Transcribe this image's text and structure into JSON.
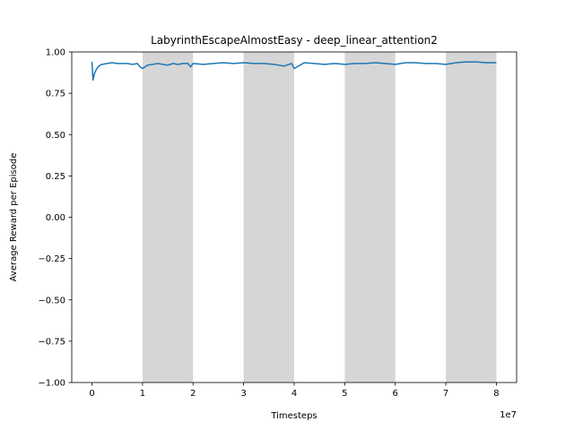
{
  "chart_data": {
    "type": "line",
    "title": "LabyrinthEscapeAlmostEasy - deep_linear_attention2",
    "xlabel": "Timesteps",
    "ylabel": "Average Reward per Episode",
    "x_offset_text": "1e7",
    "xlim": [
      -4000000,
      84000000
    ],
    "ylim": [
      -1.0,
      1.0
    ],
    "x_ticks": [
      0,
      10000000,
      20000000,
      30000000,
      40000000,
      50000000,
      60000000,
      70000000,
      80000000
    ],
    "x_tick_labels": [
      "0",
      "1",
      "2",
      "3",
      "4",
      "5",
      "6",
      "7",
      "8"
    ],
    "y_ticks": [
      1.0,
      0.75,
      0.5,
      0.25,
      0.0,
      -0.25,
      -0.5,
      -0.75,
      -1.0
    ],
    "y_tick_labels": [
      "1.00",
      "0.75",
      "0.50",
      "0.25",
      "0.00",
      "−0.25",
      "−0.50",
      "−0.75",
      "−1.00"
    ],
    "grid": false,
    "shaded_regions": [
      [
        10000000,
        20000000
      ],
      [
        30000000,
        40000000
      ],
      [
        50000000,
        60000000
      ],
      [
        70000000,
        80000000
      ]
    ],
    "shade_color": "#d6d6d6",
    "series": [
      {
        "color": "#1f77b4",
        "x": [
          0,
          200000,
          500000,
          800000,
          1200000,
          1600000,
          2000000,
          3000000,
          4000000,
          5000000,
          6000000,
          7000000,
          8000000,
          9000000,
          9500000,
          10000000,
          11000000,
          12000000,
          13000000,
          14000000,
          15000000,
          16000000,
          17000000,
          18000000,
          19000000,
          19500000,
          20000000,
          22000000,
          24000000,
          26000000,
          28000000,
          30000000,
          32000000,
          34000000,
          36000000,
          38000000,
          39500000,
          40000000,
          42000000,
          44000000,
          46000000,
          48000000,
          50000000,
          52000000,
          54000000,
          56000000,
          58000000,
          60000000,
          62000000,
          64000000,
          66000000,
          68000000,
          70000000,
          72000000,
          74000000,
          76000000,
          78000000,
          80000000
        ],
        "y": [
          0.94,
          0.83,
          0.87,
          0.89,
          0.91,
          0.92,
          0.925,
          0.93,
          0.935,
          0.93,
          0.93,
          0.93,
          0.925,
          0.93,
          0.91,
          0.9,
          0.92,
          0.925,
          0.93,
          0.925,
          0.92,
          0.93,
          0.925,
          0.93,
          0.93,
          0.91,
          0.93,
          0.925,
          0.93,
          0.935,
          0.93,
          0.935,
          0.93,
          0.93,
          0.925,
          0.915,
          0.93,
          0.9,
          0.935,
          0.93,
          0.925,
          0.93,
          0.925,
          0.93,
          0.93,
          0.935,
          0.93,
          0.925,
          0.935,
          0.935,
          0.93,
          0.93,
          0.925,
          0.935,
          0.94,
          0.94,
          0.935,
          0.935
        ]
      }
    ]
  }
}
